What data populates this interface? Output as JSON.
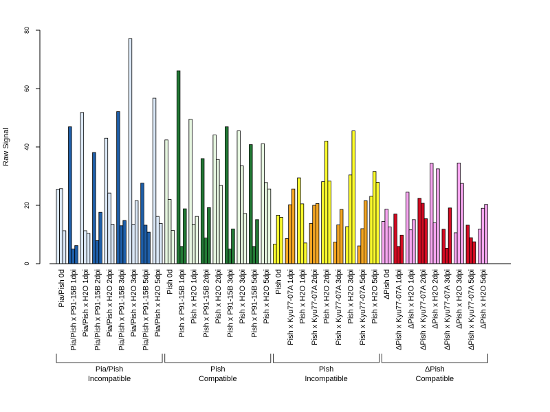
{
  "chart_data": {
    "type": "bar",
    "title": "",
    "xlabel": "",
    "ylabel": "Raw Signal",
    "ylim": [
      0,
      80
    ],
    "yticks": [
      0,
      20,
      40,
      60,
      80
    ],
    "grid": false,
    "legend": "none",
    "categories": [
      "Pia/Pish 0d",
      "Pia/Pish x P91-15B 1dpi",
      "Pia/Pish x H2O 1dpi",
      "Pia/Pish x P91-15B 2dpi",
      "Pia/Pish x H2O 2dpi",
      "Pia/Pish x P91-15B 3dpi",
      "Pia/Pish x H2O 3dpi",
      "Pia/Pish x P91-15B 5dpi",
      "Pia/Pish x H2O 5dpi",
      "Pish 0d",
      "Pish x P91-15B 1dpi",
      "Pish x H2O 1dpi",
      "Pish x P91-15B 2dpi",
      "Pish x H2O 2dpi",
      "Pish x P91-15B 3dpi",
      "Pish x H2O 3dpi",
      "Pish x P91-15B 5dpi",
      "Pish x H2O 5dpi",
      "Pish 0d",
      "Pish x Kyu77-07A 1dpi",
      "Pish x H2O 1dpi",
      "Pish x Kyu77-07A 2dpi",
      "Pish x H2O 2dpi",
      "Pish x Kyu77-07A 3dpi",
      "Pish x H2O 3dpi",
      "Pish x Kyu77-07A 5dpi",
      "Pish x H2O 5dpi",
      "ΔPish 0d",
      "ΔPish x Kyu77-07A 1dpi",
      "ΔPish x H2O 1dpi",
      "ΔPish x Kyu77-07A 2dpi",
      "ΔPish x H2O 2dpi",
      "ΔPish x Kyu77-07A 3dpi",
      "ΔPish x H2O 3dpi",
      "ΔPish x Kyu77-07A 5dpi",
      "ΔPish x H2O 5dpi"
    ],
    "values": [
      [
        25.5,
        25.7,
        11.3
      ],
      [
        46.9,
        5.0,
        6.2
      ],
      [
        51.8,
        11.3,
        10.4
      ],
      [
        38.1,
        7.9,
        17.6
      ],
      [
        43.0,
        24.2,
        13.5
      ],
      [
        52.1,
        13.0,
        14.8
      ],
      [
        77.1,
        13.5,
        21.6
      ],
      [
        27.6,
        13.2,
        10.8
      ],
      [
        56.7,
        16.2,
        13.8
      ],
      [
        42.4,
        22.0,
        11.4
      ],
      [
        66.1,
        5.9,
        18.8
      ],
      [
        49.5,
        13.5,
        16.2
      ],
      [
        36.0,
        8.8,
        19.2
      ],
      [
        44.1,
        35.7,
        26.8
      ],
      [
        46.9,
        5.0,
        11.9
      ],
      [
        45.5,
        33.5,
        17.2
      ],
      [
        40.8,
        5.9,
        15.1
      ],
      [
        41.1,
        27.8,
        25.6
      ],
      [
        6.7,
        16.6,
        15.9
      ],
      [
        8.6,
        20.2,
        25.6
      ],
      [
        29.4,
        20.5,
        7.1
      ],
      [
        13.8,
        20.0,
        20.6
      ],
      [
        28.1,
        42.0,
        28.3
      ],
      [
        7.4,
        13.3,
        18.6
      ],
      [
        12.7,
        30.4,
        45.5
      ],
      [
        6.1,
        12.0,
        21.6
      ],
      [
        23.1,
        31.6,
        27.9
      ],
      [
        14.5,
        18.7,
        12.6
      ],
      [
        17.0,
        5.9,
        9.8
      ],
      [
        24.5,
        11.6,
        15.1
      ],
      [
        22.4,
        20.7,
        15.4
      ],
      [
        34.4,
        14.0,
        32.5
      ],
      [
        11.8,
        5.3,
        19.1
      ],
      [
        10.6,
        34.5,
        27.5
      ],
      [
        13.2,
        8.9,
        7.5
      ],
      [
        11.8,
        19.0,
        20.3
      ]
    ],
    "colors": {
      "incompatible_light": "#dbe8f7",
      "incompatible_dark": "#1f5fa9",
      "compatible_light": "#e5f5df",
      "compatible_dark": "#237a36",
      "kyu_mock": "#fbfb2d",
      "kyu_inf": "#f4a623",
      "delta_mock": "#f6a6f0",
      "delta_inf": "#d30b22"
    },
    "bar_colors": [
      "incompatible_light",
      "incompatible_dark",
      "incompatible_light",
      "incompatible_dark",
      "incompatible_light",
      "incompatible_dark",
      "incompatible_light",
      "incompatible_dark",
      "incompatible_light",
      "compatible_light",
      "compatible_dark",
      "compatible_light",
      "compatible_dark",
      "compatible_light",
      "compatible_dark",
      "compatible_light",
      "compatible_dark",
      "compatible_light",
      "kyu_mock",
      "kyu_inf",
      "kyu_mock",
      "kyu_inf",
      "kyu_mock",
      "kyu_inf",
      "kyu_mock",
      "kyu_inf",
      "kyu_mock",
      "delta_mock",
      "delta_inf",
      "delta_mock",
      "delta_inf",
      "delta_mock",
      "delta_inf",
      "delta_mock",
      "delta_inf",
      "delta_mock"
    ],
    "groups": [
      {
        "line1": "Pia/Pish",
        "line2": "Incompatible",
        "from": 0,
        "to": 8
      },
      {
        "line1": "Pish",
        "line2": "Compatible",
        "from": 9,
        "to": 17
      },
      {
        "line1": "Pish",
        "line2": "Incompatible",
        "from": 18,
        "to": 26
      },
      {
        "line1": "ΔPish",
        "line2": "Compatible",
        "from": 27,
        "to": 35
      }
    ]
  }
}
